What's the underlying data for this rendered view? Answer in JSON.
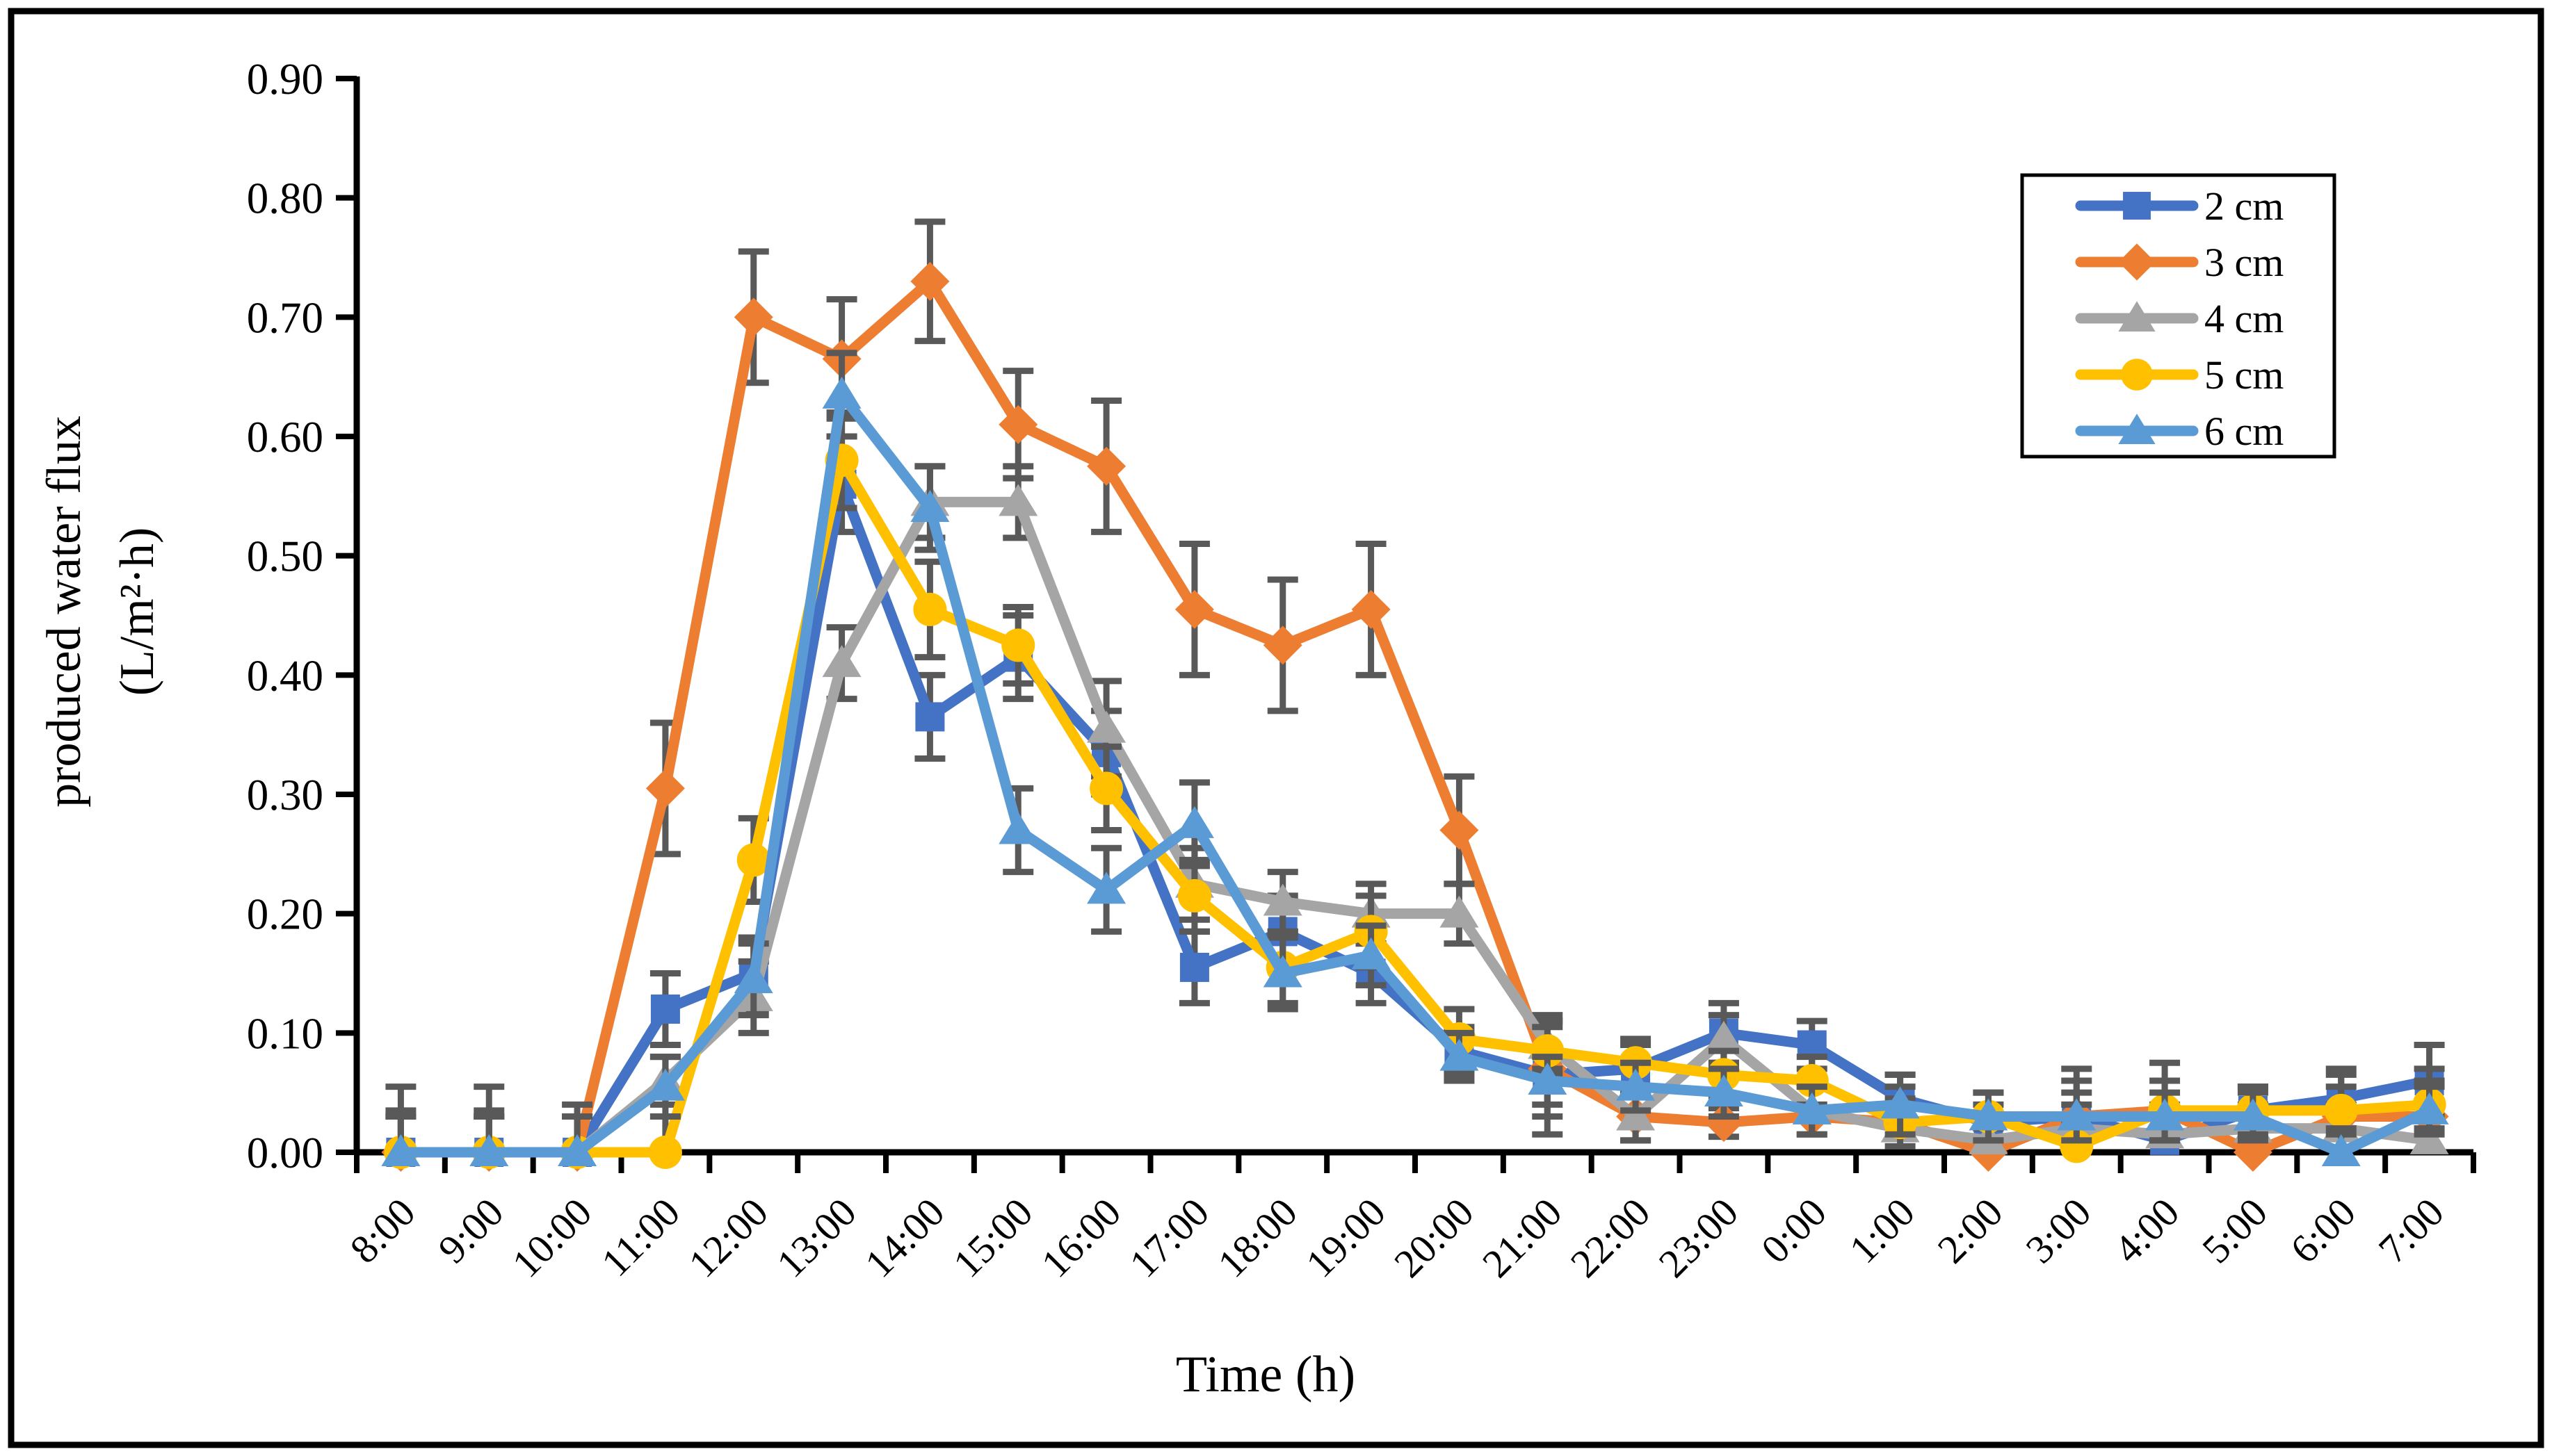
{
  "chart_data": {
    "type": "line",
    "title": "",
    "xlabel": "Time (h)",
    "ylabel_line1": "produced water flux",
    "ylabel_line2": "(L/m²·h)",
    "ylim": [
      0,
      0.9
    ],
    "ytick_step": 0.1,
    "ytick_labels": [
      "0.00",
      "0.10",
      "0.20",
      "0.30",
      "0.40",
      "0.50",
      "0.60",
      "0.70",
      "0.80",
      "0.90"
    ],
    "grid": false,
    "legend_position": "upper-right",
    "error_bar_color": "#595959",
    "categories": [
      "8:00",
      "9:00",
      "10:00",
      "11:00",
      "12:00",
      "13:00",
      "14:00",
      "15:00",
      "16:00",
      "17:00",
      "18:00",
      "19:00",
      "20:00",
      "21:00",
      "22:00",
      "23:00",
      "0:00",
      "1:00",
      "2:00",
      "3:00",
      "4:00",
      "5:00",
      "6:00",
      "7:00"
    ],
    "series": [
      {
        "name": "2 cm",
        "color": "#4472C4",
        "marker": "square",
        "values": [
          0.0,
          0.0,
          0.0,
          0.12,
          0.15,
          0.56,
          0.365,
          0.415,
          0.335,
          0.155,
          0.185,
          0.15,
          0.085,
          0.065,
          0.07,
          0.1,
          0.09,
          0.045,
          0.025,
          0.03,
          0.01,
          0.035,
          0.045,
          0.06
        ],
        "errors": [
          0.035,
          0.035,
          0.03,
          0.03,
          0.03,
          0.04,
          0.035,
          0.035,
          0.035,
          0.03,
          0.03,
          0.025,
          0.02,
          0.05,
          0.02,
          0.025,
          0.02,
          0.02,
          0.015,
          0.03,
          0.03,
          0.02,
          0.025,
          0.03
        ]
      },
      {
        "name": "3 cm",
        "color": "#ED7D31",
        "marker": "diamond",
        "values": [
          0.0,
          0.0,
          0.0,
          0.305,
          0.7,
          0.665,
          0.73,
          0.61,
          0.575,
          0.455,
          0.425,
          0.455,
          0.27,
          0.07,
          0.03,
          0.025,
          0.03,
          0.025,
          0.0,
          0.03,
          0.035,
          0.0,
          0.03,
          0.03
        ],
        "errors": [
          0.03,
          0.03,
          0.03,
          0.055,
          0.055,
          0.05,
          0.05,
          0.045,
          0.055,
          0.055,
          0.055,
          0.055,
          0.045,
          0.04,
          0.02,
          0.012,
          0.03,
          0.03,
          0.02,
          0.04,
          0.04,
          0.02,
          0.035,
          0.04
        ]
      },
      {
        "name": "4 cm",
        "color": "#A5A5A5",
        "marker": "triangle",
        "values": [
          0.0,
          0.0,
          0.0,
          0.06,
          0.13,
          0.41,
          0.545,
          0.545,
          0.355,
          0.225,
          0.21,
          0.2,
          0.2,
          0.09,
          0.03,
          0.095,
          0.035,
          0.02,
          0.01,
          0.02,
          0.015,
          0.02,
          0.02,
          0.01
        ],
        "errors": [
          0.055,
          0.055,
          0.04,
          0.02,
          0.03,
          0.03,
          0.03,
          0.03,
          0.04,
          0.03,
          0.025,
          0.025,
          0.025,
          0.02,
          0.02,
          0.02,
          0.02,
          0.02,
          0.02,
          0.02,
          0.02,
          0.02,
          0.02,
          0.02
        ]
      },
      {
        "name": "5 cm",
        "color": "#FFC000",
        "marker": "circle",
        "values": [
          0.0,
          0.0,
          0.0,
          0.0,
          0.245,
          0.58,
          0.455,
          0.425,
          0.305,
          0.215,
          0.155,
          0.185,
          0.095,
          0.085,
          0.075,
          0.065,
          0.06,
          0.025,
          0.03,
          0.005,
          0.035,
          0.035,
          0.035,
          0.04
        ],
        "errors": [
          0.03,
          0.03,
          0.03,
          0.03,
          0.035,
          0.04,
          0.04,
          0.032,
          0.035,
          0.03,
          0.03,
          0.03,
          0.025,
          0.02,
          0.02,
          0.02,
          0.02,
          0.02,
          0.02,
          0.02,
          0.025,
          0.02,
          0.02,
          0.02
        ]
      },
      {
        "name": "6 cm",
        "color": "#5B9BD5",
        "marker": "triangle",
        "values": [
          0.0,
          0.0,
          0.0,
          0.055,
          0.145,
          0.635,
          0.54,
          0.27,
          0.22,
          0.275,
          0.15,
          0.165,
          0.08,
          0.06,
          0.055,
          0.05,
          0.035,
          0.04,
          0.03,
          0.03,
          0.03,
          0.03,
          0.0,
          0.035
        ],
        "errors": [
          0.03,
          0.03,
          0.03,
          0.025,
          0.03,
          0.035,
          0.035,
          0.035,
          0.035,
          0.035,
          0.03,
          0.025,
          0.02,
          0.02,
          0.02,
          0.02,
          0.02,
          0.025,
          0.02,
          0.02,
          0.02,
          0.02,
          0.02,
          0.02
        ]
      }
    ],
    "legend_items": [
      {
        "label": "2 cm"
      },
      {
        "label": "3 cm"
      },
      {
        "label": "4 cm"
      },
      {
        "label": "5 cm"
      },
      {
        "label": "6 cm"
      }
    ]
  }
}
